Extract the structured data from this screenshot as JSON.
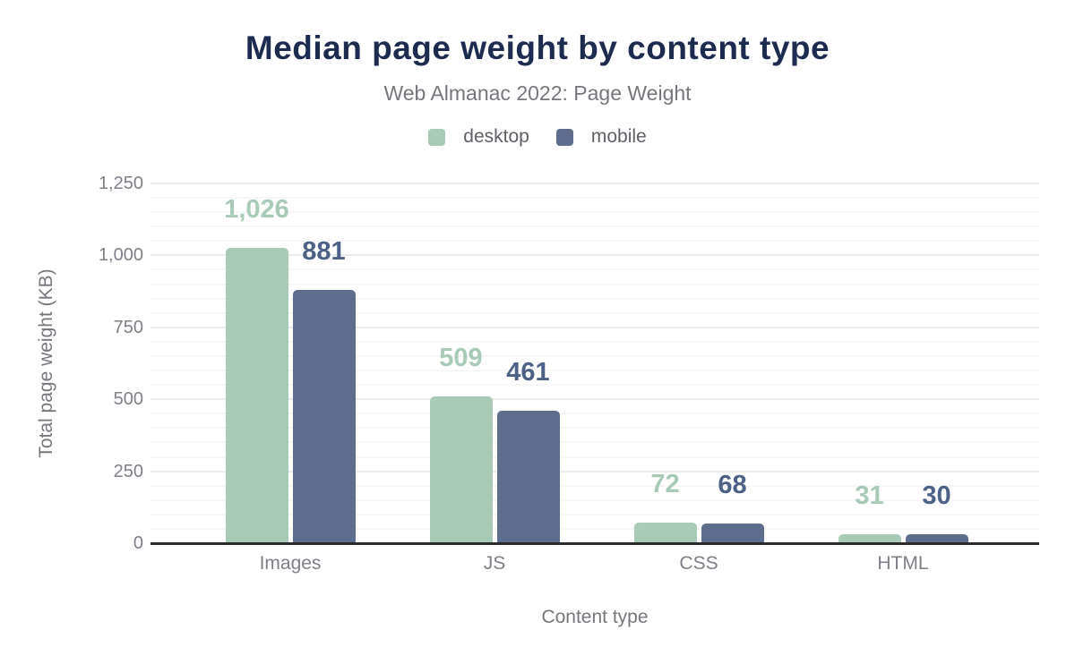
{
  "chart_data": {
    "type": "bar",
    "title": "Median page weight by content type",
    "subtitle": "Web Almanac 2022: Page Weight",
    "xlabel": "Content type",
    "ylabel": "Total page weight (KB)",
    "categories": [
      "Images",
      "JS",
      "CSS",
      "HTML"
    ],
    "series": [
      {
        "name": "desktop",
        "color": "#a9cab7",
        "label_color": "#a9cab7",
        "values": [
          1026,
          509,
          72,
          31
        ],
        "labels": [
          "1,026",
          "509",
          "72",
          "31"
        ]
      },
      {
        "name": "mobile",
        "color": "#5e6d8c",
        "label_color": "#4d6187",
        "values": [
          881,
          461,
          68,
          30
        ],
        "labels": [
          "881",
          "461",
          "68",
          "30"
        ]
      }
    ],
    "ylim": [
      0,
      1250
    ],
    "y_ticks": [
      "0",
      "250",
      "500",
      "750",
      "1,000",
      "1,250"
    ],
    "ytick_values": [
      0,
      250,
      500,
      750,
      1000,
      1250
    ],
    "ytick_step": 250,
    "minor_grid_step": 50,
    "grid": "on",
    "legend_position": "top",
    "colors": {
      "title": "#1e2b50",
      "subtitle": "#76767c",
      "axis_text": "#7f7f88",
      "axis_line": "#2b2b2b",
      "major_grid": "#ececec",
      "minor_grid": "#f7f7f7",
      "background": "#ffffff"
    }
  }
}
